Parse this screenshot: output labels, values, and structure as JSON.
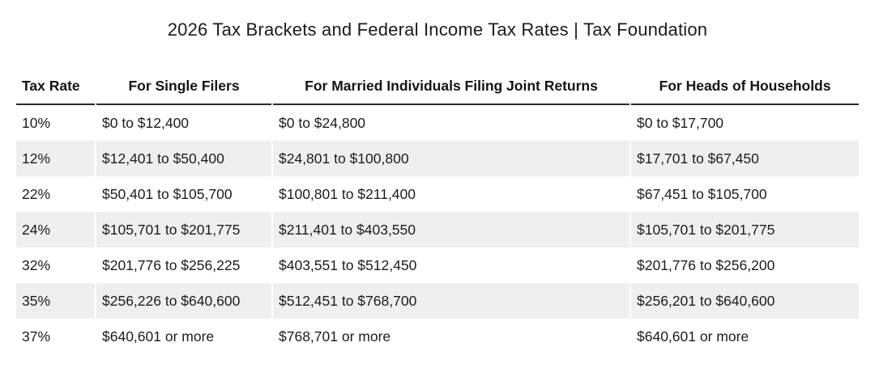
{
  "title": "2026 Tax Brackets and Federal Income Tax Rates | Tax Foundation",
  "colors": {
    "background": "#ffffff",
    "text": "#1c1c1c",
    "header_underline": "#2b2b2b",
    "row_stripe": "#efefef"
  },
  "chart_data": {
    "type": "table",
    "title": "2026 Tax Brackets and Federal Income Tax Rates | Tax Foundation",
    "columns": [
      "Tax Rate",
      "For Single Filers",
      "For Married Individuals Filing Joint Returns",
      "For Heads of Households"
    ],
    "rows": [
      [
        "10%",
        "$0 to $12,400",
        "$0 to $24,800",
        "$0 to $17,700"
      ],
      [
        "12%",
        "$12,401 to $50,400",
        "$24,801 to $100,800",
        "$17,701 to $67,450"
      ],
      [
        "22%",
        "$50,401 to $105,700",
        "$100,801 to $211,400",
        "$67,451 to $105,700"
      ],
      [
        "24%",
        "$105,701 to $201,775",
        "$211,401 to $403,550",
        "$105,701 to $201,775"
      ],
      [
        "32%",
        "$201,776 to $256,225",
        "$403,551 to $512,450",
        "$201,776 to $256,200"
      ],
      [
        "35%",
        "$256,226 to $640,600",
        "$512,451 to $768,700",
        "$256,201 to $640,600"
      ],
      [
        "37%",
        "$640,601 or more",
        "$768,701 or more",
        "$640,601 or more"
      ]
    ],
    "layout": {
      "striped_rows": "even rows gray",
      "header_alignment": "center (first column left)",
      "cell_alignment": "left"
    }
  }
}
